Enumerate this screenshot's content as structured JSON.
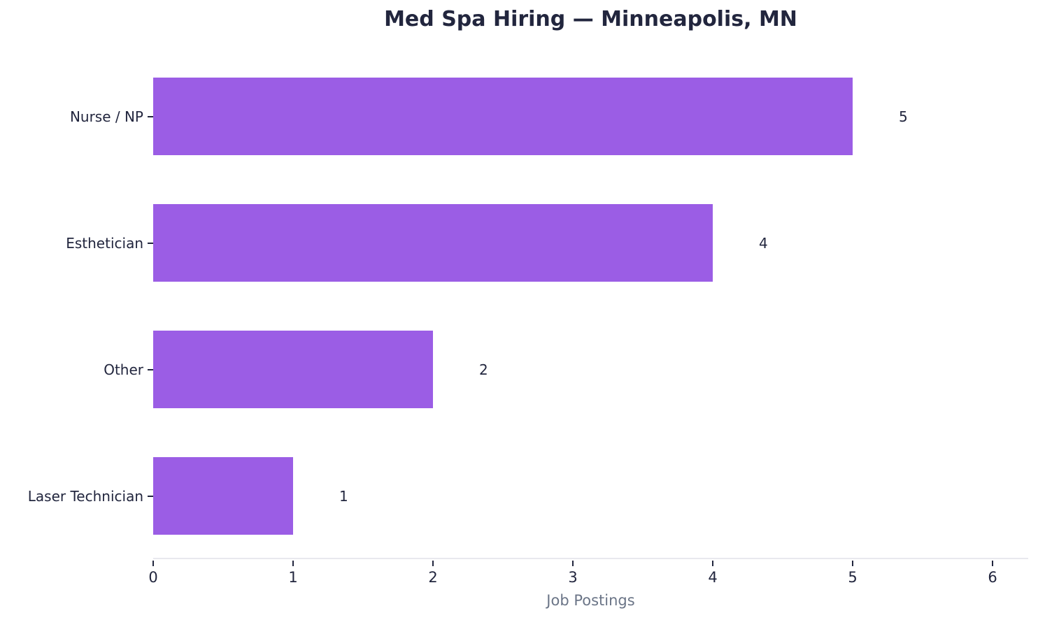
{
  "chart_data": {
    "type": "bar",
    "orientation": "horizontal",
    "title": "Med Spa Hiring — Minneapolis, MN",
    "categories": [
      "Nurse / NP",
      "Esthetician",
      "Other",
      "Laser Technician"
    ],
    "values": [
      5,
      4,
      2,
      1
    ],
    "value_labels": [
      "5",
      "4",
      "2",
      "1"
    ],
    "xlabel": "Job Postings",
    "ylabel": "",
    "x_ticks": [
      "0",
      "1",
      "2",
      "3",
      "4",
      "5",
      "6"
    ],
    "xlim": [
      0,
      6.255
    ],
    "grid": false,
    "legend": null,
    "bar_color": "#9b5de5",
    "text_color": "#22263e",
    "xlabel_color": "#6b7587",
    "axis_line_color": "#e8e8ee",
    "background_color": "#ffffff"
  }
}
